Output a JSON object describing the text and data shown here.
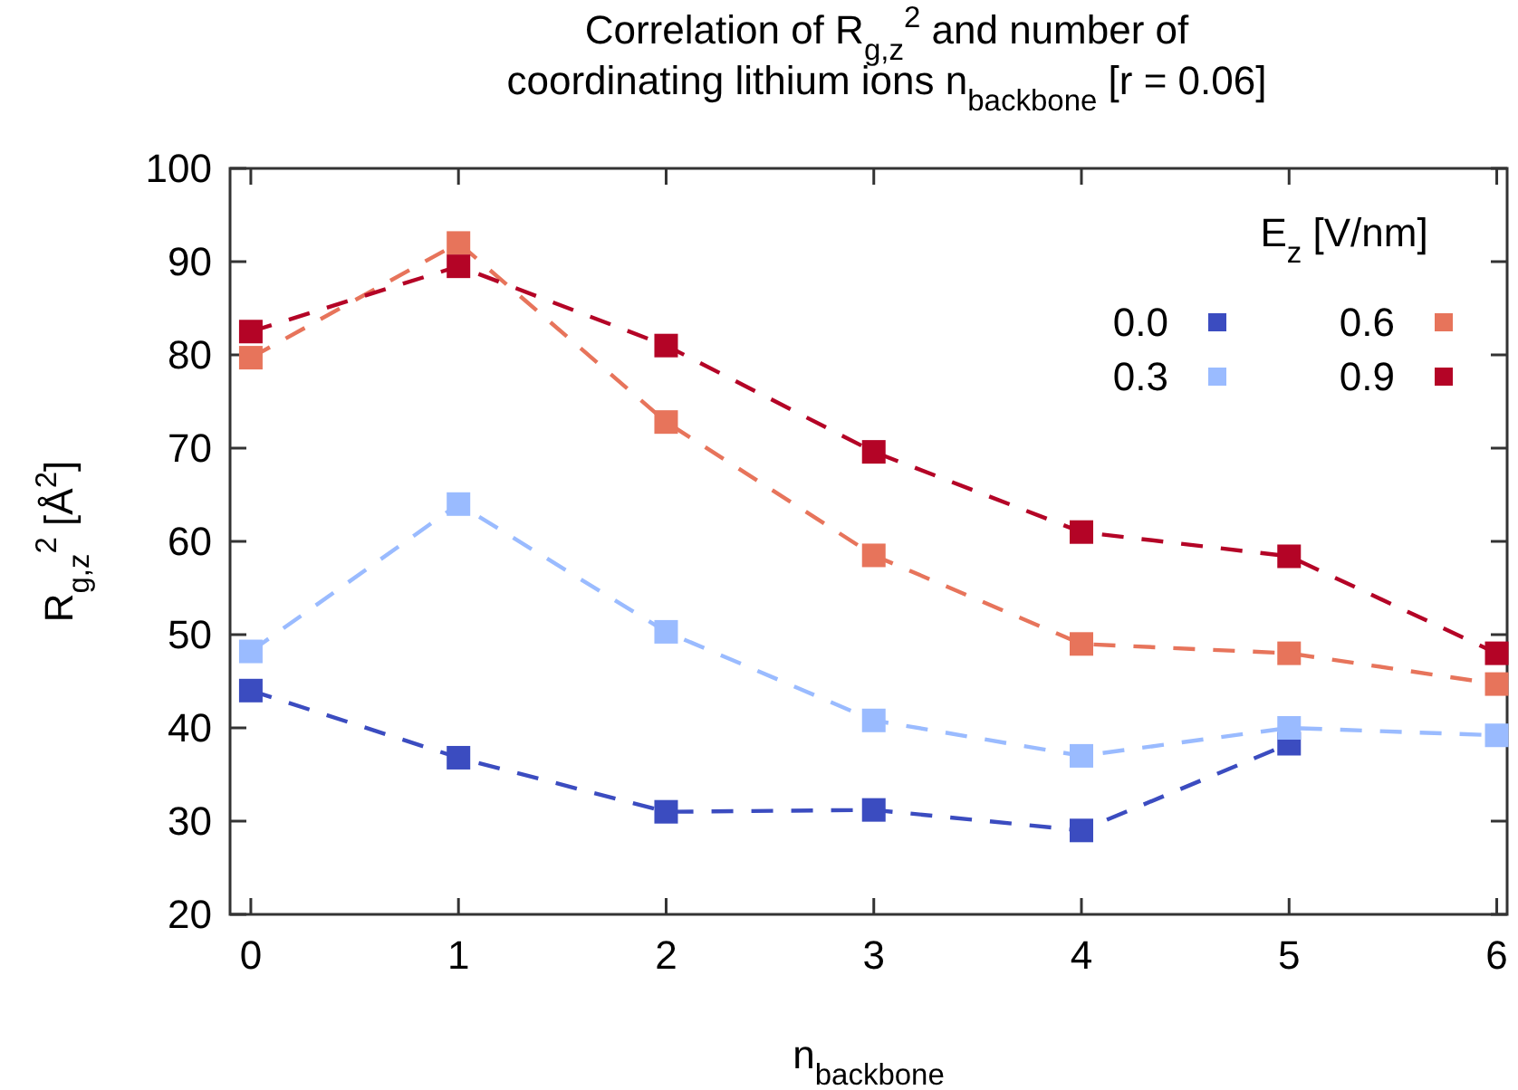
{
  "chart_data": {
    "type": "line",
    "title": "Correlation of  R$_{g,z}$$^{2}$ and number of\ncoordinating lithium ions n$_{backbone}$ [r = 0.06]",
    "xlabel": "n$_{backbone}$",
    "ylabel": "R$_{g,z}$$^{2}$ [Å$^{2}$]",
    "legend_title": "E$_{z}$ [V/nm]",
    "x": [
      0,
      1,
      2,
      3,
      4,
      5,
      6
    ],
    "series": [
      {
        "name": "0.0",
        "color": "#3b4cc0",
        "values": [
          44,
          36.8,
          31,
          31.2,
          29,
          38.3,
          null
        ]
      },
      {
        "name": "0.3",
        "color": "#9abbff",
        "values": [
          48.2,
          64,
          50.3,
          40.8,
          37,
          40,
          39.2
        ]
      },
      {
        "name": "0.6",
        "color": "#e7745b",
        "values": [
          79.7,
          92,
          72.8,
          58.5,
          49,
          48,
          44.7
        ]
      },
      {
        "name": "0.9",
        "color": "#b40426",
        "values": [
          82.5,
          89.5,
          81,
          69.6,
          61,
          58.4,
          48
        ]
      }
    ],
    "xlim": [
      -0.1,
      6.05
    ],
    "xticks": [
      0,
      1,
      2,
      3,
      4,
      5,
      6
    ],
    "ylim": [
      20,
      100
    ],
    "yticks": [
      20,
      30,
      40,
      50,
      60,
      70,
      80,
      90,
      100
    ],
    "grid": false,
    "legend": "top right",
    "marker": "square",
    "line_style": "dashed"
  }
}
